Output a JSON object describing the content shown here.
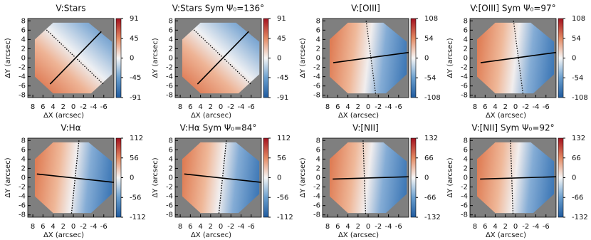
{
  "chart_data": [
    {
      "type": "map",
      "title": "V:Stars",
      "xlabel": "ΔX (arcsec)",
      "ylabel": "ΔY (arcsec)",
      "xlim": [
        9,
        -8
      ],
      "ylim": [
        -8.5,
        8.5
      ],
      "xticks": [
        8,
        6,
        4,
        2,
        0,
        -2,
        -4,
        -6
      ],
      "yticks": [
        -8,
        -6,
        -4,
        -2,
        0,
        2,
        4,
        6,
        8
      ],
      "clim": [
        -91,
        91
      ],
      "cticks": [
        91,
        45,
        0,
        -45,
        -91
      ]
    },
    {
      "type": "map",
      "title": "V:Stars Sym Ψ₀=136°",
      "xlabel": "ΔX (arcsec)",
      "ylabel": "ΔY (arcsec)",
      "xlim": [
        9,
        -8
      ],
      "ylim": [
        -8.5,
        8.5
      ],
      "xticks": [
        8,
        6,
        4,
        2,
        0,
        -2,
        -4,
        -6
      ],
      "yticks": [
        -8,
        -6,
        -4,
        -2,
        0,
        2,
        4,
        6,
        8
      ],
      "clim": [
        -91,
        91
      ],
      "cticks": [
        91,
        45,
        0,
        -45,
        -91
      ]
    },
    {
      "type": "map",
      "title": "V:[OIII]",
      "xlabel": "ΔX (arcsec)",
      "ylabel": "ΔY (arcsec)",
      "xlim": [
        9,
        -8
      ],
      "ylim": [
        -8.5,
        8.5
      ],
      "xticks": [
        8,
        6,
        4,
        2,
        0,
        -2,
        -4,
        -6
      ],
      "yticks": [
        -8,
        -6,
        -4,
        -2,
        0,
        2,
        4,
        6,
        8
      ],
      "clim": [
        -108,
        108
      ],
      "cticks": [
        108,
        54,
        0,
        -54,
        -108
      ]
    },
    {
      "type": "map",
      "title": "V:[OIII] Sym Ψ₀=97°",
      "xlabel": "ΔX (arcsec)",
      "ylabel": "ΔY (arcsec)",
      "xlim": [
        9,
        -8
      ],
      "ylim": [
        -8.5,
        8.5
      ],
      "xticks": [
        8,
        6,
        4,
        2,
        0,
        -2,
        -4,
        -6
      ],
      "yticks": [
        -8,
        -6,
        -4,
        -2,
        0,
        2,
        4,
        6,
        8
      ],
      "clim": [
        -108,
        108
      ],
      "cticks": [
        108,
        54,
        0,
        -54,
        -108
      ]
    },
    {
      "type": "map",
      "title": "V:Hα",
      "xlabel": "ΔX (arcsec)",
      "ylabel": "ΔY (arcsec)",
      "xlim": [
        9,
        -8
      ],
      "ylim": [
        -8.5,
        8.5
      ],
      "xticks": [
        8,
        6,
        4,
        2,
        0,
        -2,
        -4,
        -6
      ],
      "yticks": [
        -8,
        -6,
        -4,
        -2,
        0,
        2,
        4,
        6,
        8
      ],
      "clim": [
        -112,
        112
      ],
      "cticks": [
        112,
        56,
        0,
        -56,
        -112
      ]
    },
    {
      "type": "map",
      "title": "V:Hα Sym Ψ₀=84°",
      "xlabel": "ΔX (arcsec)",
      "ylabel": "ΔY (arcsec)",
      "xlim": [
        9,
        -8
      ],
      "ylim": [
        -8.5,
        8.5
      ],
      "xticks": [
        8,
        6,
        4,
        2,
        0,
        -2,
        -4,
        -6
      ],
      "yticks": [
        -8,
        -6,
        -4,
        -2,
        0,
        2,
        4,
        6,
        8
      ],
      "clim": [
        -112,
        112
      ],
      "cticks": [
        112,
        56,
        0,
        -56,
        -112
      ]
    },
    {
      "type": "map",
      "title": "V:[NII]",
      "xlabel": "ΔX (arcsec)",
      "ylabel": "ΔY (arcsec)",
      "xlim": [
        9,
        -8
      ],
      "ylim": [
        -8.5,
        8.5
      ],
      "xticks": [
        8,
        6,
        4,
        2,
        0,
        -2,
        -4,
        -6
      ],
      "yticks": [
        -8,
        -6,
        -4,
        -2,
        0,
        2,
        4,
        6,
        8
      ],
      "clim": [
        -132,
        132
      ],
      "cticks": [
        132,
        66,
        0,
        -66,
        -132
      ]
    },
    {
      "type": "map",
      "title": "V:[NII] Sym Ψ₀=92°",
      "xlabel": "ΔX (arcsec)",
      "ylabel": "ΔY (arcsec)",
      "xlim": [
        9,
        -8
      ],
      "ylim": [
        -8.5,
        8.5
      ],
      "xticks": [
        8,
        6,
        4,
        2,
        0,
        -2,
        -4,
        -6
      ],
      "yticks": [
        -8,
        -6,
        -4,
        -2,
        0,
        2,
        4,
        6,
        8
      ],
      "clim": [
        -132,
        132
      ],
      "cticks": [
        132,
        66,
        0,
        -66,
        -132
      ]
    }
  ]
}
